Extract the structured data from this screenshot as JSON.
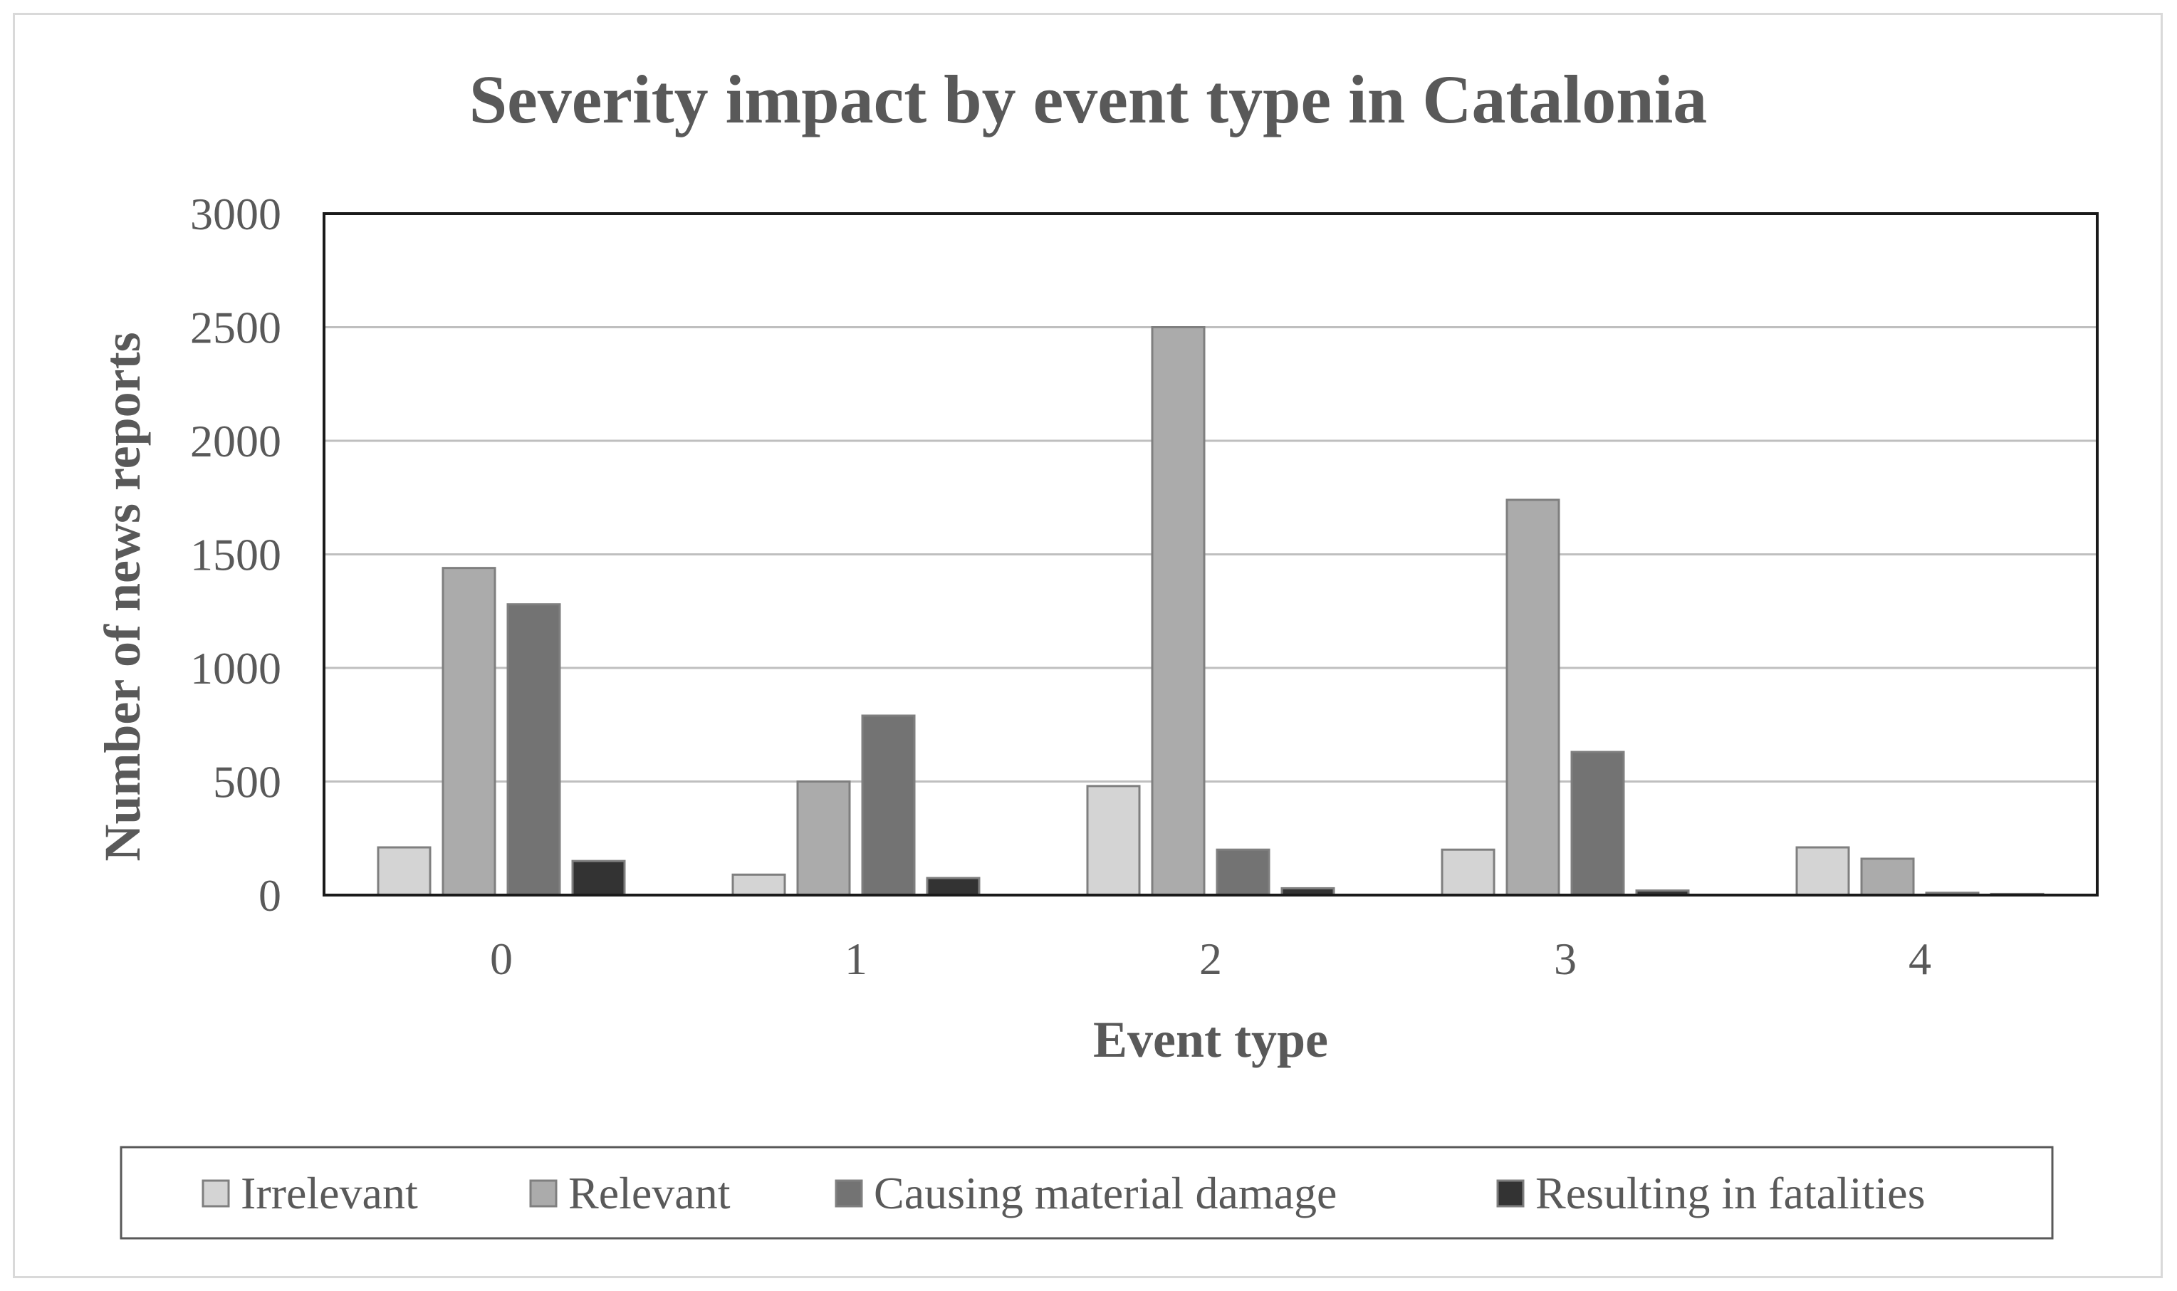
{
  "chart_data": {
    "type": "bar",
    "title": "Severity impact by event type in Catalonia",
    "xlabel": "Event type",
    "ylabel": "Number of news reports",
    "categories": [
      "0",
      "1",
      "2",
      "3",
      "4"
    ],
    "ylim": [
      0,
      3000
    ],
    "yticks": [
      0,
      500,
      1000,
      1500,
      2000,
      2500,
      3000
    ],
    "grid": true,
    "legend_position": "bottom",
    "series": [
      {
        "name": "Irrelevant",
        "color": "#d4d4d4",
        "values": [
          210,
          90,
          480,
          200,
          210
        ]
      },
      {
        "name": "Relevant",
        "color": "#ababab",
        "values": [
          1440,
          500,
          2500,
          1740,
          160
        ]
      },
      {
        "name": "Causing material damage",
        "color": "#737373",
        "values": [
          1280,
          790,
          200,
          630,
          10
        ]
      },
      {
        "name": "Resulting in fatalities",
        "color": "#333333",
        "values": [
          150,
          75,
          30,
          20,
          5
        ]
      }
    ]
  }
}
